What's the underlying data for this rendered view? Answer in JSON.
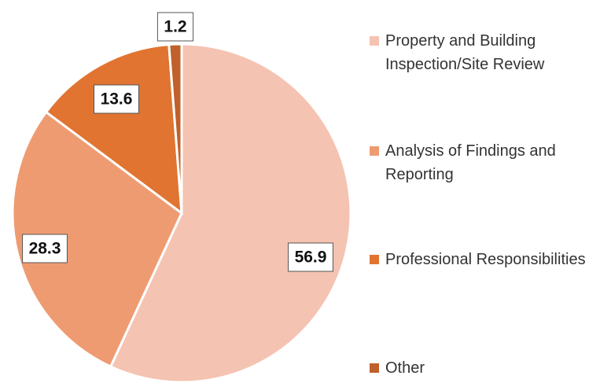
{
  "chart_data": {
    "type": "pie",
    "categories": [
      "Property and Building Inspection/Site Review",
      "Analysis of Findings and Reporting",
      "Professional Responsibilities",
      "Other"
    ],
    "values": [
      56.9,
      28.3,
      13.6,
      1.2
    ],
    "colors": [
      "#f5c3b2",
      "#ef9b71",
      "#e07430",
      "#c0602a"
    ]
  }
}
